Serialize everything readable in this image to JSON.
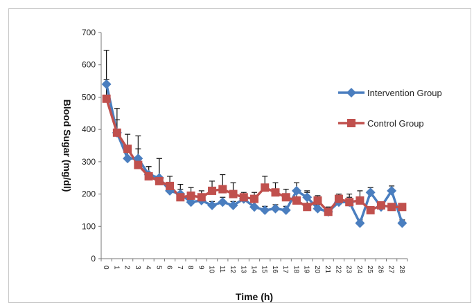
{
  "chart_data": {
    "type": "line",
    "title": "",
    "xlabel": "Time (h)",
    "ylabel": "Blood Sugar (mg/dl)",
    "ylim": [
      0,
      700
    ],
    "yticks": [
      "0",
      "100",
      "200",
      "300",
      "400",
      "500",
      "600",
      "700"
    ],
    "x": [
      "0",
      "1",
      "2",
      "3",
      "4",
      "5",
      "6",
      "7",
      "8",
      "9",
      "10",
      "11",
      "12",
      "13",
      "14",
      "15",
      "16",
      "17",
      "18",
      "19",
      "20",
      "21",
      "22",
      "23",
      "24",
      "25",
      "26",
      "27",
      "28"
    ],
    "legend_position": "right",
    "grid": false,
    "series": [
      {
        "name": "Intervention Group",
        "color": "#4a7ebf",
        "marker": "diamond",
        "values": [
          540,
          390,
          310,
          310,
          260,
          250,
          210,
          200,
          175,
          180,
          165,
          175,
          165,
          185,
          160,
          150,
          155,
          150,
          210,
          190,
          155,
          145,
          175,
          175,
          110,
          205,
          160,
          210,
          110
        ],
        "error": [
          105,
          40,
          30,
          30,
          25,
          60,
          20,
          15,
          15,
          15,
          12,
          15,
          12,
          15,
          15,
          12,
          12,
          12,
          25,
          20,
          12,
          12,
          15,
          15,
          10,
          15,
          12,
          15,
          10
        ]
      },
      {
        "name": "Control Group",
        "color": "#c0504d",
        "marker": "square",
        "values": [
          495,
          390,
          340,
          290,
          255,
          240,
          225,
          190,
          195,
          190,
          210,
          215,
          200,
          190,
          185,
          220,
          205,
          190,
          180,
          160,
          180,
          145,
          185,
          175,
          180,
          150,
          165,
          160,
          160
        ],
        "error": [
          60,
          75,
          45,
          90,
          30,
          70,
          30,
          40,
          25,
          20,
          30,
          45,
          35,
          15,
          20,
          35,
          30,
          25,
          25,
          45,
          15,
          15,
          15,
          25,
          30,
          10,
          10,
          10,
          10
        ]
      }
    ]
  }
}
